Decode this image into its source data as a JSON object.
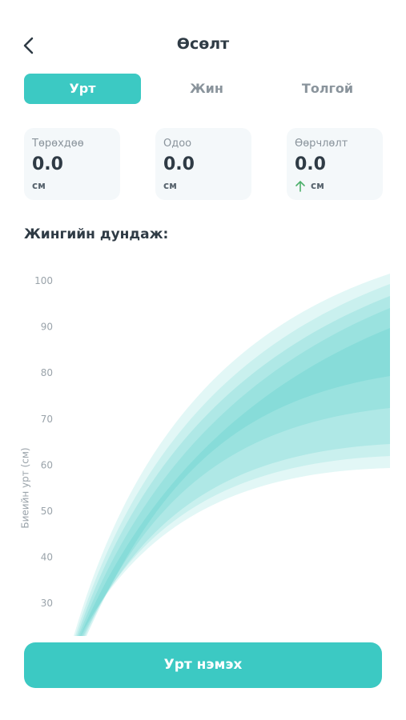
{
  "header": {
    "title": "Өсөлт"
  },
  "tabs": [
    "Урт",
    "Жин",
    "Толгой"
  ],
  "cards": [
    {
      "label": "Төрөхдөө",
      "value": "0.0",
      "unit": "см"
    },
    {
      "label": "Одоо",
      "value": "0.0",
      "unit": "см"
    },
    {
      "label": "Өөрчлөлт",
      "value": "0.0",
      "unit": "см"
    }
  ],
  "section_title": "Жингийн дундаж:",
  "chart_data": {
    "type": "area",
    "y_label": "Биеийн урт (см)",
    "ylim": [
      23,
      102
    ],
    "yticks": [
      30,
      40,
      50,
      60,
      70,
      80,
      90,
      100
    ]
  },
  "button": "Урт нэмэх"
}
